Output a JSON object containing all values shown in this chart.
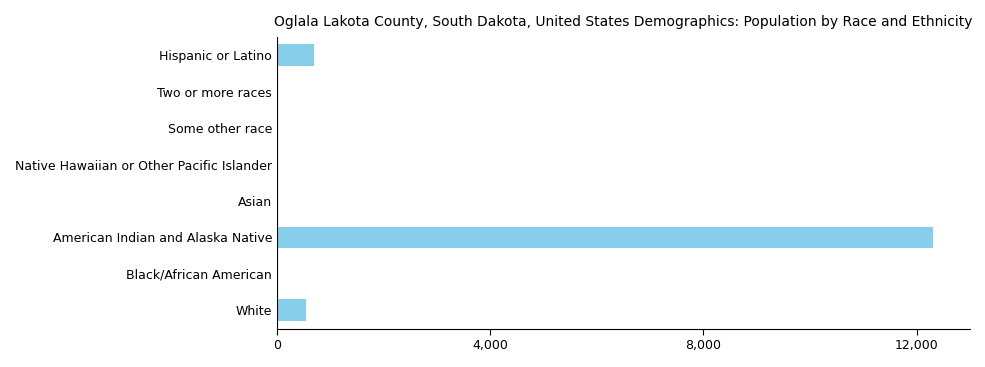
{
  "title": "Oglala Lakota County, South Dakota, United States Demographics: Population by Race and Ethnicity",
  "categories": [
    "White",
    "Black/African American",
    "American Indian and Alaska Native",
    "Asian",
    "Native Hawaiian or Other Pacific Islander",
    "Some other race",
    "Two or more races",
    "Hispanic or Latino"
  ],
  "values": [
    550,
    20,
    12300,
    15,
    10,
    20,
    30,
    700
  ],
  "bar_color": "#87CEEB",
  "xlim": [
    0,
    13000
  ],
  "xticks": [
    0,
    4000,
    8000,
    12000
  ],
  "xticklabels": [
    "0",
    "4,000",
    "8,000",
    "12,000"
  ],
  "title_fontsize": 10,
  "label_fontsize": 9,
  "tick_fontsize": 9
}
